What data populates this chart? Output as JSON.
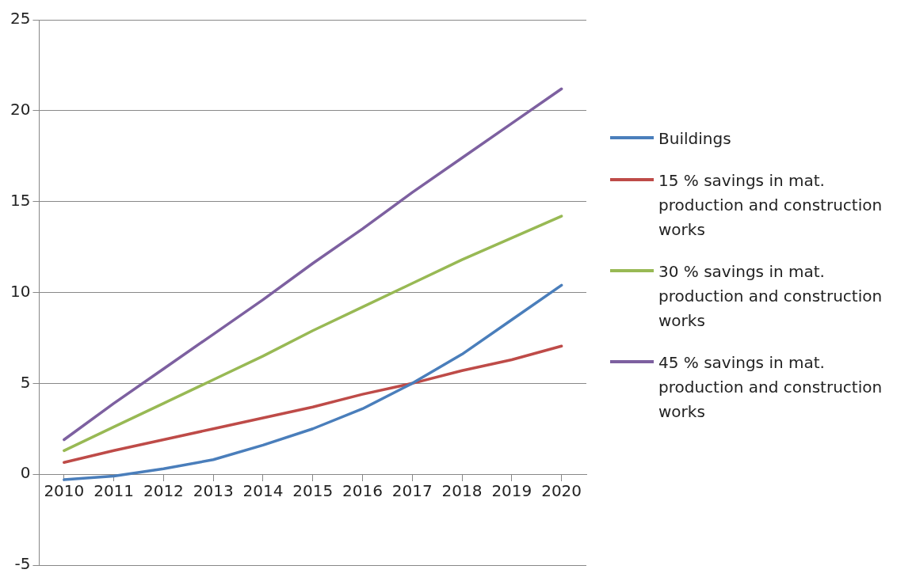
{
  "chart_data": {
    "type": "line",
    "categories": [
      "2010",
      "2011",
      "2012",
      "2013",
      "2014",
      "2015",
      "2016",
      "2017",
      "2018",
      "2019",
      "2020"
    ],
    "series": [
      {
        "name": "Buildings",
        "color": "#4a7ebb",
        "values": [
          -0.3,
          -0.1,
          0.3,
          0.8,
          1.6,
          2.5,
          3.6,
          5.0,
          6.6,
          8.5,
          10.4
        ]
      },
      {
        "name": "15 % savings in mat. production and construction works",
        "color": "#be4b48",
        "values": [
          0.65,
          1.3,
          1.9,
          2.5,
          3.1,
          3.7,
          4.4,
          5.0,
          5.7,
          6.3,
          7.05
        ]
      },
      {
        "name": "30 % savings in mat. production and construction works",
        "color": "#98b954",
        "values": [
          1.3,
          2.6,
          3.9,
          5.2,
          6.5,
          7.9,
          9.2,
          10.5,
          11.8,
          13.0,
          14.2
        ]
      },
      {
        "name": "45 % savings in mat. production and construction works",
        "color": "#7d60a0",
        "values": [
          1.9,
          3.9,
          5.8,
          7.7,
          9.6,
          11.6,
          13.5,
          15.5,
          17.4,
          19.3,
          21.2
        ]
      }
    ],
    "ylim": [
      -5,
      25
    ],
    "yticks": [
      -5,
      0,
      5,
      10,
      15,
      20,
      25
    ],
    "grid": "y",
    "legend": "right",
    "marker": "none",
    "line_style": "solid"
  }
}
